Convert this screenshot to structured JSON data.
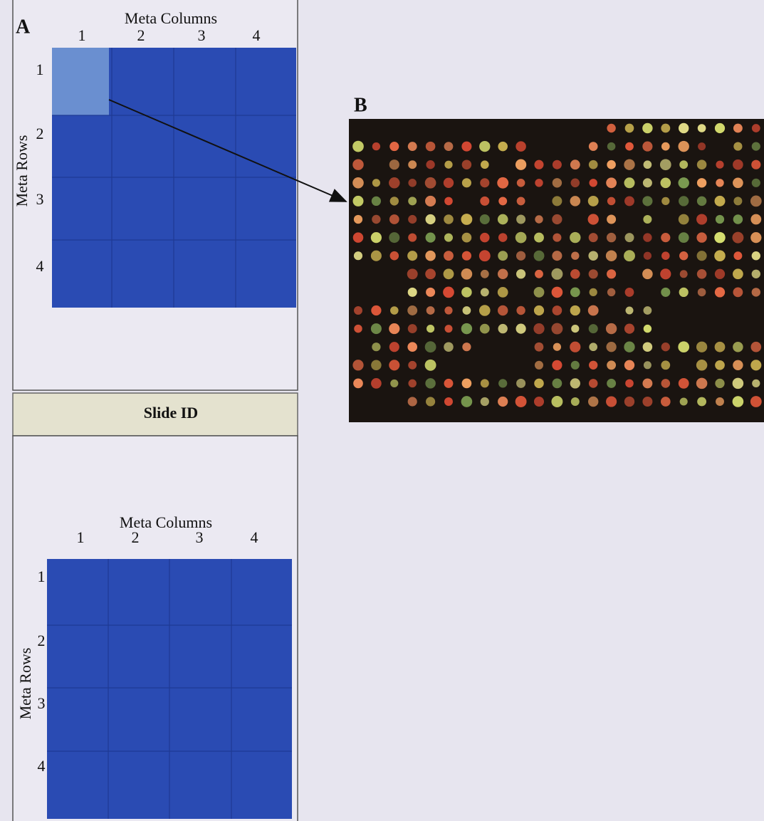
{
  "panel_a": {
    "label": "A",
    "top_grid": {
      "column_title": "Meta Columns",
      "columns": [
        "1",
        "2",
        "3",
        "4"
      ],
      "row_title": "Meta Rows",
      "rows": [
        "1",
        "2",
        "3",
        "4"
      ]
    },
    "slide_id": "Slide ID",
    "bottom_grid": {
      "column_title": "Meta Columns",
      "columns": [
        "1",
        "2",
        "3",
        "4"
      ],
      "row_title": "Meta Rows",
      "rows": [
        "1",
        "2",
        "3",
        "4"
      ]
    }
  },
  "panel_b": {
    "label": "B"
  }
}
